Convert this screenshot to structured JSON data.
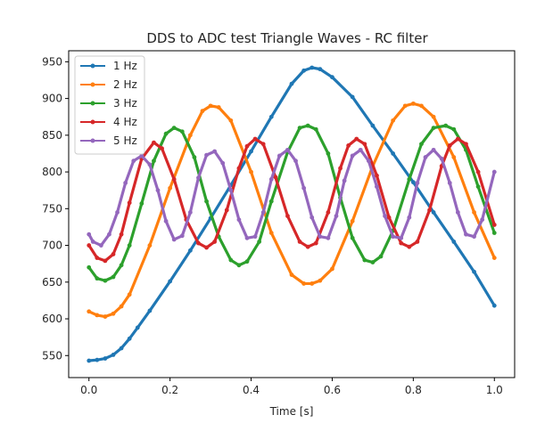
{
  "chart_data": {
    "type": "line",
    "title": "DDS to ADC test Triangle Waves - RC filter",
    "xlabel": "Time [s]",
    "ylabel": "",
    "xlim": [
      -0.05,
      1.05
    ],
    "ylim": [
      520,
      965
    ],
    "xticks": [
      "0.0",
      "0.2",
      "0.4",
      "0.6",
      "0.8",
      "1.0"
    ],
    "yticks": [
      "550",
      "600",
      "650",
      "700",
      "750",
      "800",
      "850",
      "900",
      "950"
    ],
    "grid": false,
    "legend_position": "top-left",
    "series": [
      {
        "name": "1 Hz",
        "color": "#1f77b4",
        "x": [
          0.0,
          0.02,
          0.04,
          0.06,
          0.08,
          0.1,
          0.12,
          0.15,
          0.2,
          0.25,
          0.3,
          0.35,
          0.4,
          0.45,
          0.5,
          0.53,
          0.55,
          0.57,
          0.6,
          0.65,
          0.7,
          0.75,
          0.8,
          0.85,
          0.9,
          0.95,
          1.0
        ],
        "y": [
          543,
          544,
          546,
          551,
          560,
          573,
          588,
          611,
          651,
          693,
          737,
          782,
          828,
          875,
          920,
          938,
          942,
          940,
          929,
          902,
          863,
          825,
          786,
          745,
          705,
          664,
          618
        ]
      },
      {
        "name": "2 Hz",
        "color": "#ff7f0e",
        "x": [
          0.0,
          0.02,
          0.04,
          0.06,
          0.08,
          0.1,
          0.15,
          0.2,
          0.25,
          0.28,
          0.3,
          0.32,
          0.35,
          0.4,
          0.45,
          0.5,
          0.53,
          0.55,
          0.57,
          0.6,
          0.65,
          0.7,
          0.75,
          0.78,
          0.8,
          0.82,
          0.85,
          0.9,
          0.95,
          1.0
        ],
        "y": [
          610,
          605,
          603,
          607,
          617,
          633,
          700,
          778,
          850,
          883,
          890,
          888,
          870,
          800,
          717,
          660,
          648,
          648,
          652,
          668,
          733,
          808,
          870,
          890,
          893,
          890,
          875,
          820,
          745,
          683
        ]
      },
      {
        "name": "3 Hz",
        "color": "#2ca02c",
        "x": [
          0.0,
          0.02,
          0.04,
          0.06,
          0.08,
          0.1,
          0.13,
          0.16,
          0.19,
          0.21,
          0.23,
          0.26,
          0.29,
          0.32,
          0.35,
          0.37,
          0.39,
          0.42,
          0.45,
          0.49,
          0.52,
          0.54,
          0.56,
          0.59,
          0.62,
          0.65,
          0.68,
          0.7,
          0.72,
          0.75,
          0.79,
          0.82,
          0.85,
          0.88,
          0.9,
          0.93,
          0.96,
          1.0
        ],
        "y": [
          670,
          655,
          652,
          657,
          673,
          700,
          757,
          815,
          852,
          860,
          855,
          820,
          760,
          712,
          680,
          673,
          678,
          705,
          760,
          827,
          860,
          863,
          858,
          825,
          765,
          710,
          680,
          677,
          685,
          720,
          790,
          838,
          860,
          863,
          858,
          830,
          780,
          717
        ]
      },
      {
        "name": "4 Hz",
        "color": "#d62728",
        "x": [
          0.0,
          0.02,
          0.04,
          0.06,
          0.08,
          0.1,
          0.13,
          0.16,
          0.18,
          0.21,
          0.24,
          0.27,
          0.29,
          0.31,
          0.34,
          0.37,
          0.39,
          0.41,
          0.43,
          0.46,
          0.49,
          0.52,
          0.54,
          0.56,
          0.59,
          0.62,
          0.64,
          0.66,
          0.68,
          0.71,
          0.74,
          0.77,
          0.79,
          0.81,
          0.84,
          0.87,
          0.89,
          0.91,
          0.93,
          0.96,
          1.0
        ],
        "y": [
          700,
          683,
          679,
          688,
          715,
          758,
          818,
          840,
          832,
          790,
          735,
          703,
          697,
          705,
          748,
          805,
          835,
          845,
          838,
          793,
          740,
          705,
          698,
          703,
          745,
          805,
          836,
          845,
          838,
          795,
          738,
          703,
          698,
          705,
          748,
          808,
          836,
          845,
          838,
          800,
          728
        ]
      },
      {
        "name": "5 Hz",
        "color": "#9467bd",
        "x": [
          0.0,
          0.01,
          0.03,
          0.05,
          0.07,
          0.09,
          0.11,
          0.13,
          0.15,
          0.17,
          0.19,
          0.21,
          0.23,
          0.25,
          0.27,
          0.29,
          0.31,
          0.33,
          0.35,
          0.37,
          0.39,
          0.41,
          0.43,
          0.45,
          0.47,
          0.49,
          0.51,
          0.53,
          0.55,
          0.57,
          0.59,
          0.61,
          0.63,
          0.65,
          0.67,
          0.69,
          0.71,
          0.73,
          0.75,
          0.77,
          0.79,
          0.81,
          0.83,
          0.85,
          0.87,
          0.89,
          0.91,
          0.93,
          0.95,
          0.97,
          1.0
        ],
        "y": [
          715,
          705,
          700,
          715,
          745,
          785,
          815,
          822,
          810,
          775,
          733,
          708,
          713,
          745,
          792,
          823,
          828,
          812,
          775,
          735,
          710,
          712,
          745,
          790,
          822,
          830,
          815,
          778,
          738,
          712,
          710,
          740,
          788,
          822,
          830,
          815,
          780,
          740,
          712,
          710,
          738,
          785,
          820,
          830,
          818,
          785,
          745,
          715,
          712,
          735,
          800
        ]
      }
    ]
  }
}
